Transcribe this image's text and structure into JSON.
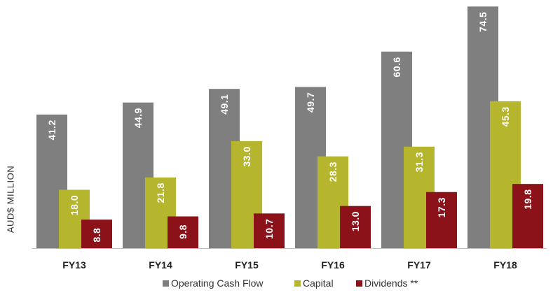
{
  "chart_data": {
    "type": "bar",
    "categories": [
      "FY13",
      "FY14",
      "FY15",
      "FY16",
      "FY17",
      "FY18"
    ],
    "series": [
      {
        "name": "Operating Cash Flow",
        "color": "#7f7f7f",
        "values": [
          41.2,
          44.9,
          49.1,
          49.7,
          60.6,
          74.5
        ]
      },
      {
        "name": "Capital",
        "color": "#b5b52e",
        "values": [
          18.0,
          21.8,
          33.0,
          28.3,
          31.3,
          45.3
        ]
      },
      {
        "name": "Dividends **",
        "color": "#8c1219",
        "values": [
          8.8,
          9.8,
          10.7,
          13.0,
          17.3,
          19.8
        ]
      }
    ],
    "value_labels": [
      [
        "41.2",
        "44.9",
        "49.1",
        "49.7",
        "60.6",
        "74.5"
      ],
      [
        "18.0",
        "21.8",
        "33.0",
        "28.3",
        "31.3",
        "45.3"
      ],
      [
        "8.8",
        "9.8",
        "10.7",
        "13.0",
        "17.3",
        "19.8"
      ]
    ],
    "ylabel": "AUD$ MILLION",
    "xlabel": "",
    "title": "",
    "ylim": [
      0,
      75
    ],
    "legend_position": "bottom",
    "grid": false,
    "value_labels_rotated": true
  }
}
